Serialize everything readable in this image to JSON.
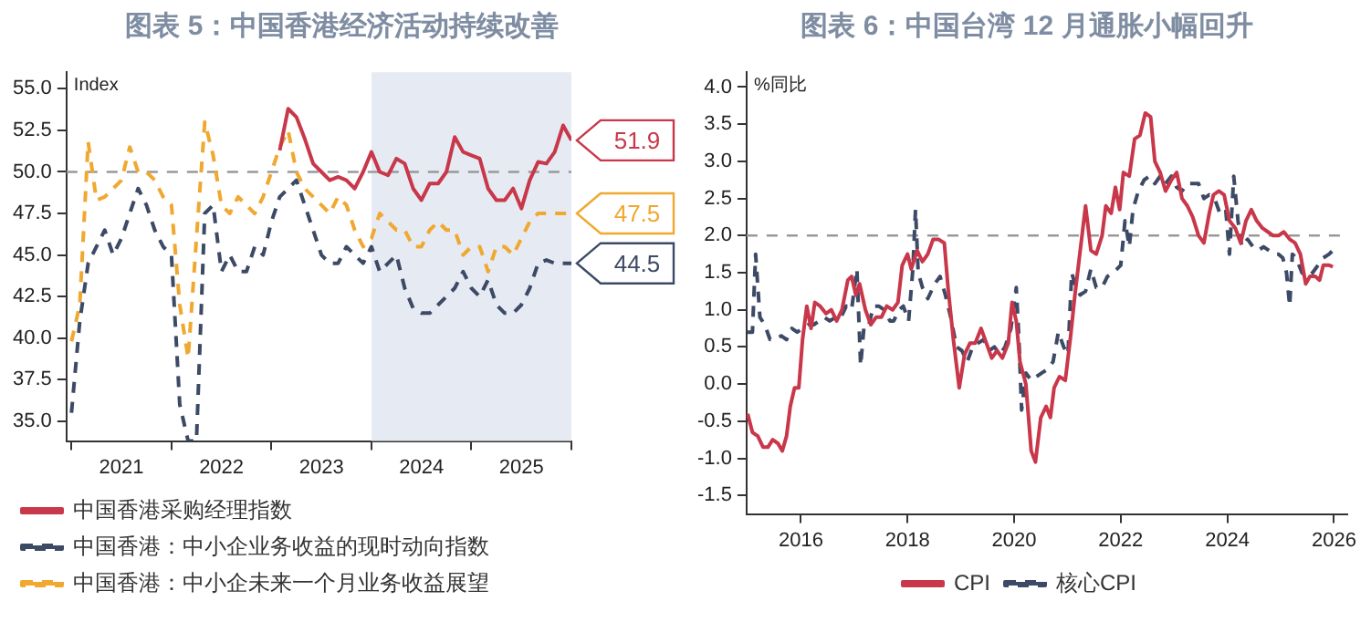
{
  "chart_data": [
    {
      "type": "line",
      "title": "图表 5：中国香港经济活动持续改善",
      "ylabel": "Index",
      "x": [
        2021,
        2021.083,
        2021.167,
        2021.25,
        2021.333,
        2021.417,
        2021.5,
        2021.583,
        2021.667,
        2021.75,
        2021.833,
        2021.917,
        2022,
        2022.083,
        2022.167,
        2022.25,
        2022.333,
        2022.417,
        2022.5,
        2022.583,
        2022.667,
        2022.75,
        2022.833,
        2022.917,
        2023,
        2023.083,
        2023.167,
        2023.25,
        2023.333,
        2023.417,
        2023.5,
        2023.583,
        2023.667,
        2023.75,
        2023.833,
        2023.917,
        2024,
        2024.083,
        2024.167,
        2024.25,
        2024.333,
        2024.417,
        2024.5,
        2024.583,
        2024.667,
        2024.75,
        2024.833,
        2024.917,
        2025,
        2025.083,
        2025.167,
        2025.25,
        2025.333,
        2025.417,
        2025.5,
        2025.583,
        2025.667,
        2025.75,
        2025.833,
        2025.917,
        2026
      ],
      "series": [
        {
          "name": "中国香港采购经理指数",
          "color": "#c8374a",
          "line_style": "solid",
          "values": [
            null,
            null,
            null,
            null,
            null,
            null,
            null,
            null,
            null,
            null,
            null,
            null,
            null,
            null,
            null,
            null,
            null,
            null,
            null,
            null,
            null,
            null,
            null,
            null,
            null,
            51.3,
            53.8,
            53.3,
            52,
            50.5,
            50,
            49.5,
            49.7,
            49.5,
            49,
            50,
            51.2,
            50,
            49.8,
            50.8,
            50.5,
            49,
            48.3,
            49.3,
            49.3,
            50,
            52.1,
            51.2,
            51,
            50.8,
            49,
            48.3,
            48.3,
            49,
            47.8,
            49.5,
            50.6,
            50.5,
            51.2,
            52.8,
            51.9
          ],
          "value_labels": [
            null,
            null,
            null,
            null,
            null,
            null,
            null,
            null,
            null,
            null,
            null,
            null,
            null,
            null,
            null,
            null,
            null,
            null,
            null,
            null,
            null,
            null,
            null,
            null,
            null,
            null,
            null,
            null,
            null,
            null,
            null,
            null,
            null,
            null,
            null,
            null,
            null,
            null,
            null,
            null,
            null,
            null,
            null,
            null,
            null,
            null,
            null,
            null,
            null,
            null,
            null,
            null,
            null,
            null,
            null,
            null,
            null,
            null,
            null,
            null,
            "51.9"
          ]
        },
        {
          "name": "中国香港：中小企业务收益的现时动向指数",
          "color": "#3d4a66",
          "line_style": "dashed",
          "values": [
            35.5,
            41,
            44.5,
            45.5,
            46.5,
            45,
            46,
            47.5,
            49,
            48,
            46.5,
            45.5,
            45,
            36,
            33.8,
            33.8,
            47.5,
            48,
            44,
            45,
            44,
            44,
            45.5,
            45,
            47,
            48.5,
            49,
            49.5,
            48,
            46.5,
            45,
            44.5,
            44.5,
            45.5,
            45,
            44.5,
            45.5,
            44,
            44.5,
            45,
            43,
            41.8,
            41.5,
            41.5,
            42,
            42.5,
            43,
            44,
            43,
            42.5,
            43.5,
            42,
            41.5,
            41.5,
            42,
            43,
            44.5,
            44.7,
            44.5,
            44.5,
            44.5
          ],
          "value_labels": [
            null,
            null,
            null,
            null,
            null,
            null,
            null,
            null,
            null,
            null,
            null,
            null,
            null,
            null,
            null,
            null,
            null,
            null,
            null,
            null,
            null,
            null,
            null,
            null,
            null,
            null,
            null,
            null,
            null,
            null,
            null,
            null,
            null,
            null,
            null,
            null,
            null,
            null,
            null,
            null,
            null,
            null,
            null,
            null,
            null,
            null,
            null,
            null,
            null,
            null,
            null,
            null,
            null,
            null,
            null,
            null,
            null,
            null,
            null,
            null,
            "44.5"
          ]
        },
        {
          "name": "中国香港：中小企未来一个月业务收益展望",
          "color": "#f0a830",
          "line_style": "dashed",
          "values": [
            39.8,
            42,
            51.8,
            48.3,
            48.5,
            49,
            49.5,
            51.5,
            50,
            50,
            49.5,
            48.5,
            48,
            42,
            38.8,
            46,
            53,
            51,
            48,
            47.5,
            48.5,
            48,
            47.5,
            48.5,
            50,
            51.5,
            52.5,
            50,
            49,
            48.5,
            48,
            47.5,
            48.5,
            48,
            46.5,
            45.5,
            46,
            47.5,
            47,
            46.5,
            46.5,
            45.5,
            45.5,
            46.5,
            47,
            46.5,
            46.5,
            45,
            45.5,
            45.5,
            44,
            45.5,
            45.5,
            45,
            46,
            47,
            47.5,
            47.5,
            47.5,
            47.5,
            47.5
          ],
          "value_labels": [
            null,
            null,
            null,
            null,
            null,
            null,
            null,
            null,
            null,
            null,
            null,
            null,
            null,
            null,
            null,
            null,
            null,
            null,
            null,
            null,
            null,
            null,
            null,
            null,
            null,
            null,
            null,
            null,
            null,
            null,
            null,
            null,
            null,
            null,
            null,
            null,
            null,
            null,
            null,
            null,
            null,
            null,
            null,
            null,
            null,
            null,
            null,
            null,
            null,
            null,
            null,
            null,
            null,
            null,
            null,
            null,
            null,
            null,
            null,
            null,
            "47.5"
          ]
        }
      ],
      "xlim": [
        2020.95,
        2026
      ],
      "xticks": [
        {
          "value": 2021,
          "label": null
        },
        {
          "value": 2021.5,
          "label": "2021"
        },
        {
          "value": 2022,
          "label": null
        },
        {
          "value": 2022.5,
          "label": "2022"
        },
        {
          "value": 2023,
          "label": null
        },
        {
          "value": 2023.5,
          "label": "2023"
        },
        {
          "value": 2024,
          "label": null
        },
        {
          "value": 2024.5,
          "label": "2024"
        },
        {
          "value": 2025,
          "label": null
        },
        {
          "value": 2025.5,
          "label": "2025"
        },
        {
          "value": 2026,
          "label": null
        }
      ],
      "ylim": [
        33.8,
        56
      ],
      "yticks": [
        {
          "value": 35,
          "label": "35.0"
        },
        {
          "value": 37.5,
          "label": "37.5"
        },
        {
          "value": 40,
          "label": "40.0"
        },
        {
          "value": 42.5,
          "label": "42.5"
        },
        {
          "value": 45,
          "label": "45.0"
        },
        {
          "value": 47.5,
          "label": "47.5"
        },
        {
          "value": 50,
          "label": "50.0"
        },
        {
          "value": 52.5,
          "label": "52.5"
        },
        {
          "value": 55,
          "label": "55.0"
        }
      ],
      "ref_lines": [
        {
          "axis": "y",
          "value": 50,
          "color": "#999999",
          "line_style": "dashed"
        }
      ],
      "bands": [
        {
          "axis": "x",
          "from": 2024,
          "to": 2026,
          "color": "#e6ebf3"
        }
      ],
      "grid": false,
      "legend": "bottom",
      "marker": "none"
    },
    {
      "type": "line",
      "title": "图表 6：中国台湾 12 月通胀小幅回升",
      "ylabel": "%同比",
      "series": [
        {
          "name": "CPI",
          "color": "#c8374a",
          "line_style": "solid",
          "x": [
            2015,
            2015.09,
            2015.19,
            2015.29,
            2015.38,
            2015.47,
            2015.57,
            2015.65,
            2015.73,
            2015.8,
            2015.88,
            2015.96,
            2016.03,
            2016.11,
            2016.19,
            2016.26,
            2016.36,
            2016.47,
            2016.57,
            2016.67,
            2016.77,
            2016.88,
            2016.95,
            2017.03,
            2017.1,
            2017.21,
            2017.31,
            2017.41,
            2017.51,
            2017.61,
            2017.72,
            2017.82,
            2017.9,
            2018,
            2018.07,
            2018.18,
            2018.28,
            2018.38,
            2018.48,
            2018.58,
            2018.69,
            2018.76,
            2018.86,
            2018.97,
            2019.07,
            2019.17,
            2019.27,
            2019.38,
            2019.48,
            2019.58,
            2019.68,
            2019.78,
            2019.89,
            2019.96,
            2020.04,
            2020.11,
            2020.22,
            2020.32,
            2020.4,
            2020.5,
            2020.6,
            2020.68,
            2020.75,
            2020.85,
            2020.96,
            2021.06,
            2021.14,
            2021.24,
            2021.34,
            2021.44,
            2021.54,
            2021.65,
            2021.72,
            2021.82,
            2021.9,
            2021.98,
            2022.05,
            2022.16,
            2022.26,
            2022.36,
            2022.46,
            2022.56,
            2022.64,
            2022.74,
            2022.84,
            2022.95,
            2023.05,
            2023.15,
            2023.25,
            2023.35,
            2023.46,
            2023.56,
            2023.66,
            2023.74,
            2023.84,
            2023.94,
            2024.04,
            2024.15,
            2024.25,
            2024.35,
            2024.45,
            2024.55,
            2024.66,
            2024.76,
            2024.86,
            2024.96,
            2025.06,
            2025.17,
            2025.27,
            2025.37,
            2025.47,
            2025.55,
            2025.65,
            2025.73,
            2025.8,
            2025.91,
            2025.98
          ],
          "values": [
            -0.4,
            -0.65,
            -0.7,
            -0.85,
            -0.85,
            -0.75,
            -0.8,
            -0.9,
            -0.7,
            -0.3,
            -0.05,
            -0.05,
            0.6,
            1.05,
            0.75,
            1.1,
            1.05,
            0.95,
            1,
            0.85,
            1,
            1.4,
            1.45,
            1.2,
            1.35,
            1,
            0.8,
            0.9,
            0.9,
            1.05,
            1,
            1.1,
            1.6,
            1.75,
            1.55,
            1.8,
            1.65,
            1.75,
            1.95,
            1.95,
            1.9,
            1.3,
            0.6,
            -0.05,
            0.4,
            0.55,
            0.55,
            0.75,
            0.55,
            0.35,
            0.45,
            0.35,
            0.55,
            1.1,
            0.85,
            0.3,
            0,
            -0.9,
            -1.05,
            -0.45,
            -0.3,
            -0.45,
            -0.05,
            0.1,
            0.05,
            0.65,
            1.2,
            1.8,
            2.4,
            1.8,
            1.75,
            2,
            2.4,
            2.3,
            2.65,
            2.35,
            2.85,
            2.8,
            3.3,
            3.35,
            3.65,
            3.6,
            3,
            2.85,
            2.6,
            2.75,
            2.85,
            2.5,
            2.4,
            2.25,
            2,
            1.9,
            2.3,
            2.55,
            2.6,
            2.55,
            2.2,
            2.1,
            1.9,
            2.2,
            2.35,
            2.2,
            2.1,
            2.05,
            2,
            2,
            2.05,
            1.95,
            1.9,
            1.75,
            1.35,
            1.45,
            1.45,
            1.4,
            1.6,
            1.6,
            1.58
          ]
        },
        {
          "name": "核心CPI",
          "color": "#3d4a66",
          "line_style": "dashed",
          "x": [
            2015,
            2015.09,
            2015.15,
            2015.23,
            2015.32,
            2015.42,
            2015.52,
            2015.63,
            2015.73,
            2015.83,
            2015.93,
            2016.03,
            2016.14,
            2016.24,
            2016.34,
            2016.44,
            2016.54,
            2016.65,
            2016.75,
            2016.85,
            2016.95,
            2017.05,
            2017.12,
            2017.18,
            2017.26,
            2017.36,
            2017.46,
            2017.56,
            2017.67,
            2017.74,
            2017.84,
            2017.92,
            2018.02,
            2018.1,
            2018.15,
            2018.2,
            2018.28,
            2018.38,
            2018.51,
            2018.61,
            2018.71,
            2018.81,
            2018.92,
            2019.02,
            2019.12,
            2019.22,
            2019.32,
            2019.43,
            2019.53,
            2019.63,
            2019.73,
            2019.83,
            2019.94,
            2020.04,
            2020.09,
            2020.14,
            2020.22,
            2020.32,
            2020.42,
            2020.52,
            2020.63,
            2020.73,
            2020.83,
            2020.93,
            2021.01,
            2021.08,
            2021.16,
            2021.24,
            2021.34,
            2021.44,
            2021.54,
            2021.65,
            2021.75,
            2021.85,
            2021.93,
            2022,
            2022.08,
            2022.16,
            2022.23,
            2022.33,
            2022.44,
            2022.54,
            2022.64,
            2022.74,
            2022.84,
            2022.95,
            2023.05,
            2023.15,
            2023.25,
            2023.35,
            2023.46,
            2023.56,
            2023.66,
            2023.76,
            2023.86,
            2023.97,
            2024.04,
            2024.12,
            2024.2,
            2024.27,
            2024.38,
            2024.48,
            2024.58,
            2024.68,
            2024.78,
            2024.89,
            2024.96,
            2025.04,
            2025.11,
            2025.17,
            2025.22,
            2025.29,
            2025.4,
            2025.5,
            2025.6,
            2025.7,
            2025.8,
            2025.91,
            2025.98
          ],
          "values": [
            0.7,
            0.7,
            1.75,
            0.9,
            0.8,
            0.6,
            0.6,
            0.65,
            0.6,
            0.75,
            0.7,
            0.75,
            0.8,
            0.8,
            0.85,
            0.9,
            0.85,
            0.9,
            0.9,
            1.05,
            1,
            1.55,
            0.25,
            0.75,
            0.75,
            1.05,
            1.05,
            1,
            0.85,
            0.85,
            1,
            1.05,
            0.85,
            1.55,
            2.35,
            1.5,
            1.3,
            1.15,
            1.35,
            1.45,
            1.2,
            0.9,
            0.5,
            0.45,
            0.3,
            0.5,
            0.55,
            0.6,
            0.45,
            0.5,
            0.4,
            0.5,
            0.75,
            1.3,
            0.6,
            -0.35,
            0.15,
            0.05,
            0.1,
            0.15,
            0.2,
            0.3,
            0.7,
            0.5,
            0.4,
            1.5,
            1.3,
            1.2,
            1.25,
            1.55,
            1.3,
            1.3,
            1.45,
            1.5,
            1.55,
            1.6,
            2.2,
            1.85,
            2.35,
            2.6,
            2.75,
            2.8,
            2.7,
            2.8,
            2.7,
            2.8,
            2.65,
            2.6,
            2.7,
            2.7,
            2.7,
            2.5,
            2.55,
            2.5,
            2.3,
            2.35,
            1.75,
            2.8,
            2.2,
            1.85,
            1.95,
            1.85,
            1.8,
            1.85,
            1.8,
            1.75,
            1.75,
            1.7,
            1.5,
            1.05,
            1.75,
            1.7,
            1.5,
            1.45,
            1.5,
            1.6,
            1.7,
            1.75,
            1.8
          ]
        }
      ],
      "xlim": [
        2014.98,
        2026.25
      ],
      "xticks": [
        2016,
        2018,
        2020,
        2022,
        2024,
        2026
      ],
      "ylim": [
        -1.75,
        4.2
      ],
      "yticks": [
        {
          "value": -1.5,
          "label": "-1.5"
        },
        {
          "value": -1,
          "label": "-1.0"
        },
        {
          "value": -0.5,
          "label": "-0.5"
        },
        {
          "value": 0,
          "label": "0.0"
        },
        {
          "value": 0.5,
          "label": "0.5"
        },
        {
          "value": 1,
          "label": "1.0"
        },
        {
          "value": 1.5,
          "label": "1.5"
        },
        {
          "value": 2,
          "label": "2.0"
        },
        {
          "value": 2.5,
          "label": "2.5"
        },
        {
          "value": 3,
          "label": "3.0"
        },
        {
          "value": 3.5,
          "label": "3.5"
        },
        {
          "value": 4,
          "label": "4.0"
        }
      ],
      "ref_lines": [
        {
          "axis": "y",
          "value": 2,
          "color": "#999999",
          "line_style": "dashed"
        }
      ],
      "grid": false,
      "legend": "bottom",
      "marker": "none"
    }
  ]
}
